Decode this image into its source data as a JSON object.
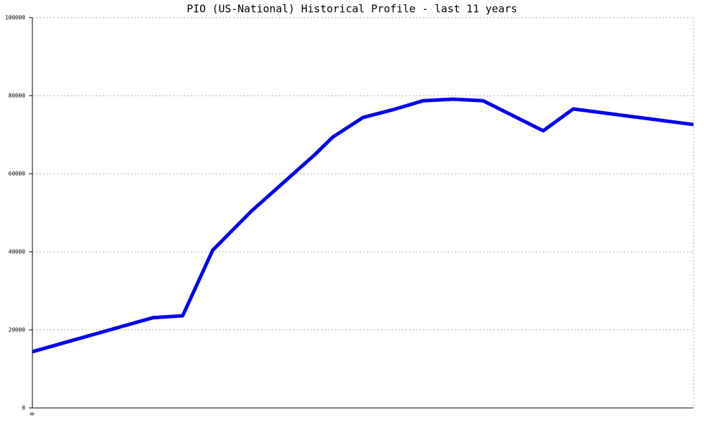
{
  "chart_data": {
    "type": "line",
    "title": "PIO (US-National) Historical Profile - last 11 years",
    "x": [
      0,
      4,
      5,
      6,
      7.3,
      9.4,
      10,
      11,
      12,
      13,
      14,
      15,
      17,
      18,
      22
    ],
    "series": [
      {
        "color": "#0000ee",
        "values": [
          14400,
          23100,
          23600,
          40400,
          50500,
          64900,
          69400,
          74400,
          76400,
          78700,
          79100,
          78700,
          71000,
          76600,
          72600
        ]
      }
    ],
    "xlim": [
      0,
      22
    ],
    "xticks": [
      0
    ],
    "ylim": [
      0,
      100000
    ],
    "yticks": [
      0,
      20000,
      40000,
      60000,
      80000,
      100000
    ],
    "grid": true
  }
}
